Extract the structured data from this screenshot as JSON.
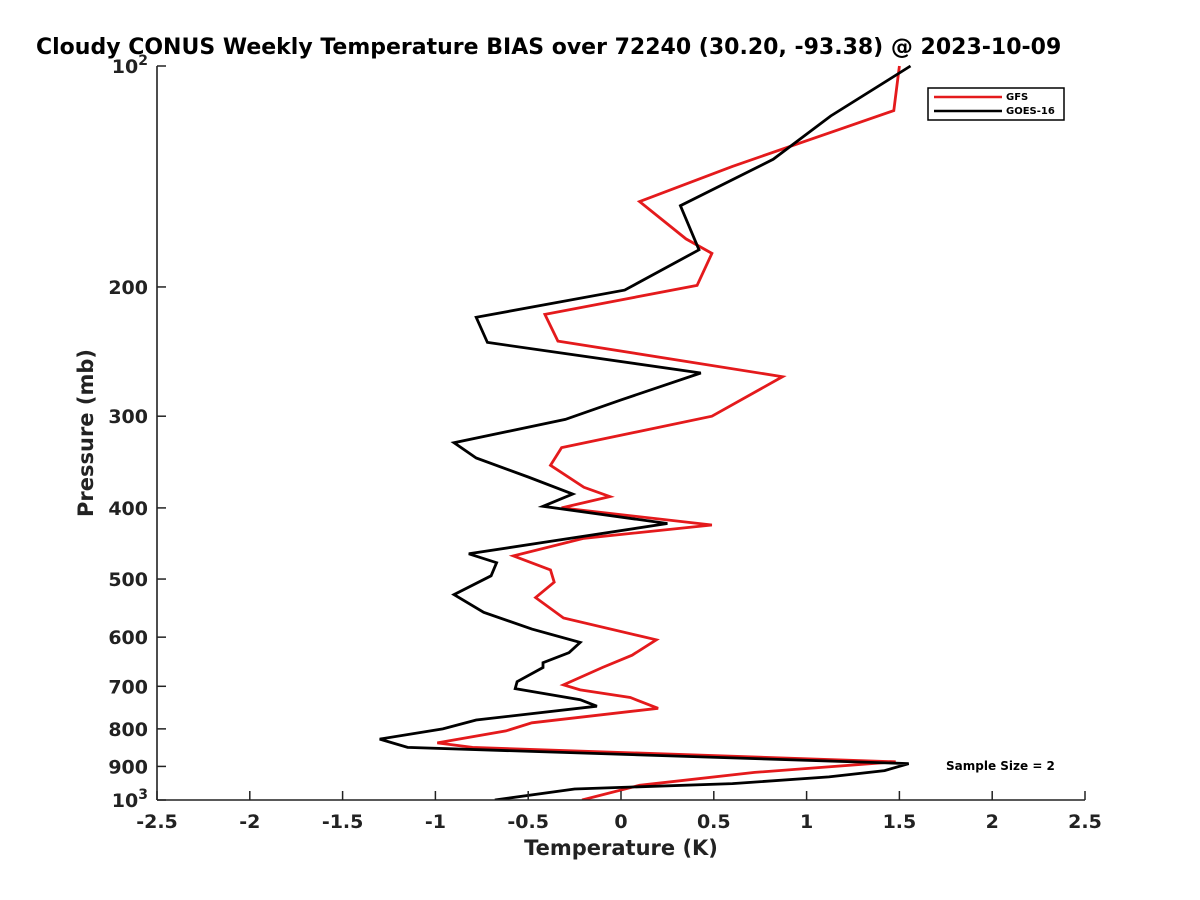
{
  "chart_data": {
    "type": "line",
    "title": "Cloudy CONUS Weekly Temperature BIAS over 72240 (30.20, -93.38) @ 2023-10-09",
    "xlabel": "Temperature (K)",
    "ylabel": "Pressure (mb)",
    "xlim": [
      -2.5,
      2.5
    ],
    "ylim": [
      100,
      1000
    ],
    "yscale": "log",
    "y_reversed": true,
    "grid": false,
    "legend_position": "top-right",
    "x_ticks": [
      -2.5,
      -2,
      -1.5,
      -1,
      -0.5,
      0,
      0.5,
      1,
      1.5,
      2,
      2.5
    ],
    "x_tick_labels": [
      "-2.5",
      "-2",
      "-1.5",
      "-1",
      "-0.5",
      "0",
      "0.5",
      "1",
      "1.5",
      "2",
      "2.5"
    ],
    "y_ticks": [
      100,
      200,
      300,
      400,
      500,
      600,
      700,
      800,
      900,
      1000
    ],
    "y_tick_labels": [
      {
        "base": "10",
        "sup": "2"
      },
      {
        "base": "200",
        "sup": ""
      },
      {
        "base": "300",
        "sup": ""
      },
      {
        "base": "400",
        "sup": ""
      },
      {
        "base": "500",
        "sup": ""
      },
      {
        "base": "600",
        "sup": ""
      },
      {
        "base": "700",
        "sup": ""
      },
      {
        "base": "800",
        "sup": ""
      },
      {
        "base": "900",
        "sup": ""
      },
      {
        "base": "10",
        "sup": "3"
      }
    ],
    "annotation": "Sample Size = 2",
    "series": [
      {
        "name": "GFS",
        "color": "#e41a1c",
        "points": [
          [
            1.5,
            100
          ],
          [
            1.47,
            115
          ],
          [
            0.6,
            137
          ],
          [
            0.1,
            153
          ],
          [
            0.35,
            172
          ],
          [
            0.49,
            180
          ],
          [
            0.41,
            199
          ],
          [
            -0.41,
            218
          ],
          [
            -0.34,
            237
          ],
          [
            0.87,
            265
          ],
          [
            0.49,
            300
          ],
          [
            -0.32,
            331
          ],
          [
            -0.38,
            350
          ],
          [
            -0.2,
            375
          ],
          [
            -0.06,
            386
          ],
          [
            -0.32,
            400
          ],
          [
            0.49,
            422
          ],
          [
            -0.2,
            440
          ],
          [
            -0.58,
            465
          ],
          [
            -0.38,
            486
          ],
          [
            -0.36,
            505
          ],
          [
            -0.46,
            530
          ],
          [
            -0.31,
            565
          ],
          [
            0.19,
            605
          ],
          [
            0.06,
            635
          ],
          [
            -0.1,
            660
          ],
          [
            -0.31,
            697
          ],
          [
            -0.22,
            708
          ],
          [
            0.05,
            725
          ],
          [
            0.2,
            750
          ],
          [
            -0.48,
            785
          ],
          [
            -0.62,
            805
          ],
          [
            -0.99,
            836
          ],
          [
            -0.8,
            848
          ],
          [
            1.48,
            887
          ],
          [
            0.72,
            917
          ],
          [
            0.1,
            955
          ],
          [
            -0.21,
            1000
          ]
        ]
      },
      {
        "name": "GOES-16",
        "color": "#000000",
        "points": [
          [
            1.56,
            100
          ],
          [
            1.13,
            117
          ],
          [
            0.82,
            134
          ],
          [
            0.32,
            155
          ],
          [
            0.42,
            178
          ],
          [
            0.02,
            202
          ],
          [
            -0.78,
            220
          ],
          [
            -0.72,
            238
          ],
          [
            0.43,
            262
          ],
          [
            0.0,
            285
          ],
          [
            -0.3,
            303
          ],
          [
            -0.9,
            326
          ],
          [
            -0.78,
            342
          ],
          [
            -0.5,
            363
          ],
          [
            -0.26,
            383
          ],
          [
            -0.42,
            398
          ],
          [
            0.25,
            420
          ],
          [
            -0.4,
            445
          ],
          [
            -0.82,
            462
          ],
          [
            -0.67,
            475
          ],
          [
            -0.7,
            495
          ],
          [
            -0.9,
            525
          ],
          [
            -0.74,
            555
          ],
          [
            -0.48,
            585
          ],
          [
            -0.22,
            610
          ],
          [
            -0.28,
            630
          ],
          [
            -0.42,
            650
          ],
          [
            -0.42,
            660
          ],
          [
            -0.56,
            690
          ],
          [
            -0.57,
            705
          ],
          [
            -0.22,
            730
          ],
          [
            -0.13,
            745
          ],
          [
            -0.78,
            778
          ],
          [
            -0.96,
            800
          ],
          [
            -1.3,
            826
          ],
          [
            -1.15,
            848
          ],
          [
            1.55,
            892
          ],
          [
            1.42,
            912
          ],
          [
            1.12,
            930
          ],
          [
            0.6,
            950
          ],
          [
            -0.25,
            966
          ],
          [
            -0.68,
            1000
          ]
        ]
      }
    ]
  }
}
